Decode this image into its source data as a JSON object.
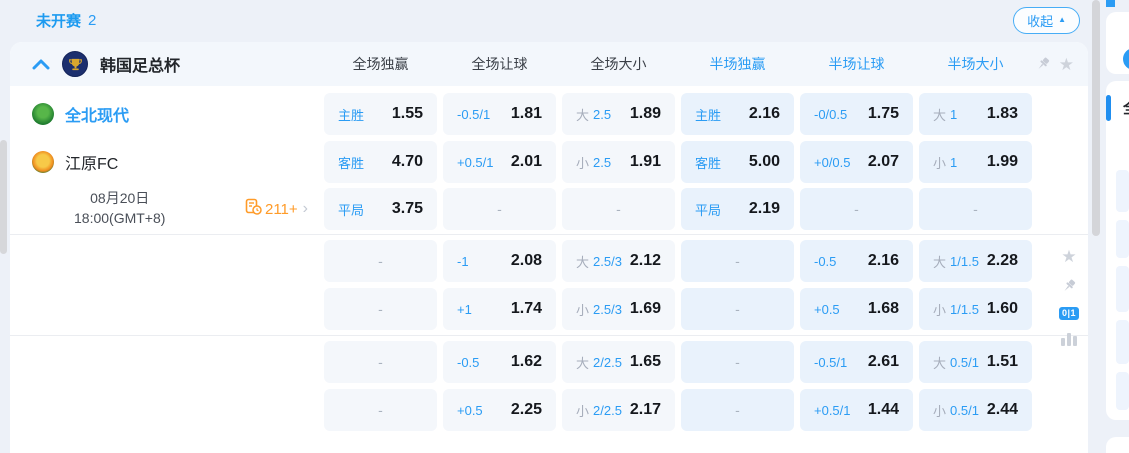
{
  "colors": {
    "accent": "#2b9cf4",
    "orange": "#ff9b28",
    "cell_full": "#f4f7fb",
    "cell_half": "#e9f2fc"
  },
  "topbar": {
    "status": "未开赛",
    "count": "2",
    "collapse_label": "收起"
  },
  "league": {
    "name": "韩国足总杯",
    "columns": [
      {
        "label": "全场独赢"
      },
      {
        "label": "全场让球"
      },
      {
        "label": "全场大小"
      },
      {
        "label": "半场独赢"
      },
      {
        "label": "半场让球"
      },
      {
        "label": "半场大小"
      }
    ]
  },
  "match": {
    "home_name": "全北现代",
    "away_name": "江原FC",
    "date": "08月20日",
    "time": "18:00(GMT+8)",
    "markets_count": "211+"
  },
  "side_stack": {
    "score_badge": "0|1"
  },
  "right_panel": {
    "partial_tab_label": "全"
  },
  "sections": [
    {
      "rows": [
        {
          "cells": [
            {
              "label": "主胜",
              "value": "1.55"
            },
            {
              "label": "-0.5/1",
              "value": "1.81"
            },
            {
              "prefix": "大",
              "label": "2.5",
              "value": "1.89"
            },
            {
              "label": "主胜",
              "value": "2.16"
            },
            {
              "label": "-0/0.5",
              "value": "1.75"
            },
            {
              "prefix": "大",
              "label": "1",
              "value": "1.83"
            }
          ]
        },
        {
          "cells": [
            {
              "label": "客胜",
              "value": "4.70"
            },
            {
              "label": "+0.5/1",
              "value": "2.01"
            },
            {
              "prefix": "小",
              "label": "2.5",
              "value": "1.91"
            },
            {
              "label": "客胜",
              "value": "5.00"
            },
            {
              "label": "+0/0.5",
              "value": "2.07"
            },
            {
              "prefix": "小",
              "label": "1",
              "value": "1.99"
            }
          ]
        },
        {
          "cells": [
            {
              "label": "平局",
              "value": "3.75"
            },
            {
              "dash": true
            },
            {
              "dash": true
            },
            {
              "label": "平局",
              "value": "2.19"
            },
            {
              "dash": true
            },
            {
              "dash": true
            }
          ]
        }
      ]
    },
    {
      "rows": [
        {
          "cells": [
            {
              "dash": true
            },
            {
              "label": "-1",
              "value": "2.08"
            },
            {
              "prefix": "大",
              "label": "2.5/3",
              "value": "2.12"
            },
            {
              "dash": true
            },
            {
              "label": "-0.5",
              "value": "2.16"
            },
            {
              "prefix": "大",
              "label": "1/1.5",
              "value": "2.28"
            }
          ]
        },
        {
          "cells": [
            {
              "dash": true
            },
            {
              "label": "+1",
              "value": "1.74"
            },
            {
              "prefix": "小",
              "label": "2.5/3",
              "value": "1.69"
            },
            {
              "dash": true
            },
            {
              "label": "+0.5",
              "value": "1.68"
            },
            {
              "prefix": "小",
              "label": "1/1.5",
              "value": "1.60"
            }
          ]
        }
      ]
    },
    {
      "rows": [
        {
          "cells": [
            {
              "dash": true
            },
            {
              "label": "-0.5",
              "value": "1.62"
            },
            {
              "prefix": "大",
              "label": "2/2.5",
              "value": "1.65"
            },
            {
              "dash": true
            },
            {
              "label": "-0.5/1",
              "value": "2.61"
            },
            {
              "prefix": "大",
              "label": "0.5/1",
              "value": "1.51"
            }
          ]
        },
        {
          "cells": [
            {
              "dash": true
            },
            {
              "label": "+0.5",
              "value": "2.25"
            },
            {
              "prefix": "小",
              "label": "2/2.5",
              "value": "2.17"
            },
            {
              "dash": true
            },
            {
              "label": "+0.5/1",
              "value": "1.44"
            },
            {
              "prefix": "小",
              "label": "0.5/1",
              "value": "2.44"
            }
          ]
        }
      ]
    }
  ]
}
